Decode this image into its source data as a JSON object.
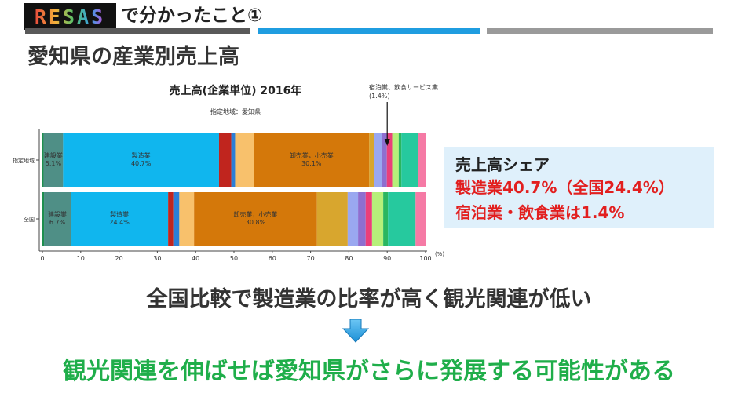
{
  "header": {
    "logo_text": "RESAS",
    "title": "で分かったこと①"
  },
  "page_title": "愛知県の産業別売上高",
  "chart_data": {
    "type": "bar",
    "orientation": "horizontal",
    "stacked": true,
    "title": "売上高(企業単位) 2016年",
    "subtitle": "指定地域：愛知県",
    "categories": [
      "指定地域",
      "全国"
    ],
    "xlim": [
      0,
      100
    ],
    "xticks": [
      0,
      10,
      20,
      30,
      40,
      50,
      60,
      70,
      80,
      90,
      100
    ],
    "x_unit": "(%)",
    "annotation": {
      "lines": [
        "宿泊業、飲食サービス業",
        "(1.4%)"
      ],
      "x": 90
    },
    "segments": [
      {
        "values": [
          0.3,
          0.4
        ],
        "color": "#1e8f4e",
        "label": ""
      },
      {
        "values": [
          5.1,
          6.7
        ],
        "color": "#4f8f86",
        "label": "建設業"
      },
      {
        "values": [
          40.7,
          24.4
        ],
        "color": "#10b6ee",
        "label": "製造業"
      },
      {
        "values": [
          3.2,
          1.3
        ],
        "color": "#c0251e",
        "label": ""
      },
      {
        "values": [
          1.0,
          1.5
        ],
        "color": "#2b7fd8",
        "label": ""
      },
      {
        "values": [
          4.9,
          3.7
        ],
        "color": "#f8c16c",
        "label": ""
      },
      {
        "values": [
          30.1,
          30.8
        ],
        "color": "#d4780a",
        "label": "卸売業，小売業"
      },
      {
        "values": [
          1.3,
          7.7
        ],
        "color": "#d8a62e",
        "label": ""
      },
      {
        "values": [
          2.1,
          2.6
        ],
        "color": "#9aa8f0",
        "label": ""
      },
      {
        "values": [
          1.2,
          1.9
        ],
        "color": "#8e6fd0",
        "label": ""
      },
      {
        "values": [
          1.4,
          1.6
        ],
        "color": "#ea3f7a",
        "label": ""
      },
      {
        "values": [
          1.7,
          2.8
        ],
        "color": "#b6f07a",
        "label": ""
      },
      {
        "values": [
          0.7,
          1.2
        ],
        "color": "#2ab65f",
        "label": ""
      },
      {
        "values": [
          4.4,
          6.9
        ],
        "color": "#26c99e",
        "label": ""
      },
      {
        "values": [
          1.9,
          2.5
        ],
        "color": "#f57aa5",
        "label": ""
      }
    ]
  },
  "share_box": {
    "title": "売上高シェア",
    "line1": "製造業40.7%（全国24.4%）",
    "line2": "宿泊業・飲食業は1.4%"
  },
  "conclusion": "全国比較で製造業の比率が高く観光関連が低い",
  "final_message": "観光関連を伸ばせば愛知県がさらに発展する可能性がある",
  "colors": {
    "accent_blue": "#1f9de0",
    "accent_red": "#e21f1f",
    "accent_green": "#1fae4a",
    "box_bg": "#dff0fb"
  }
}
